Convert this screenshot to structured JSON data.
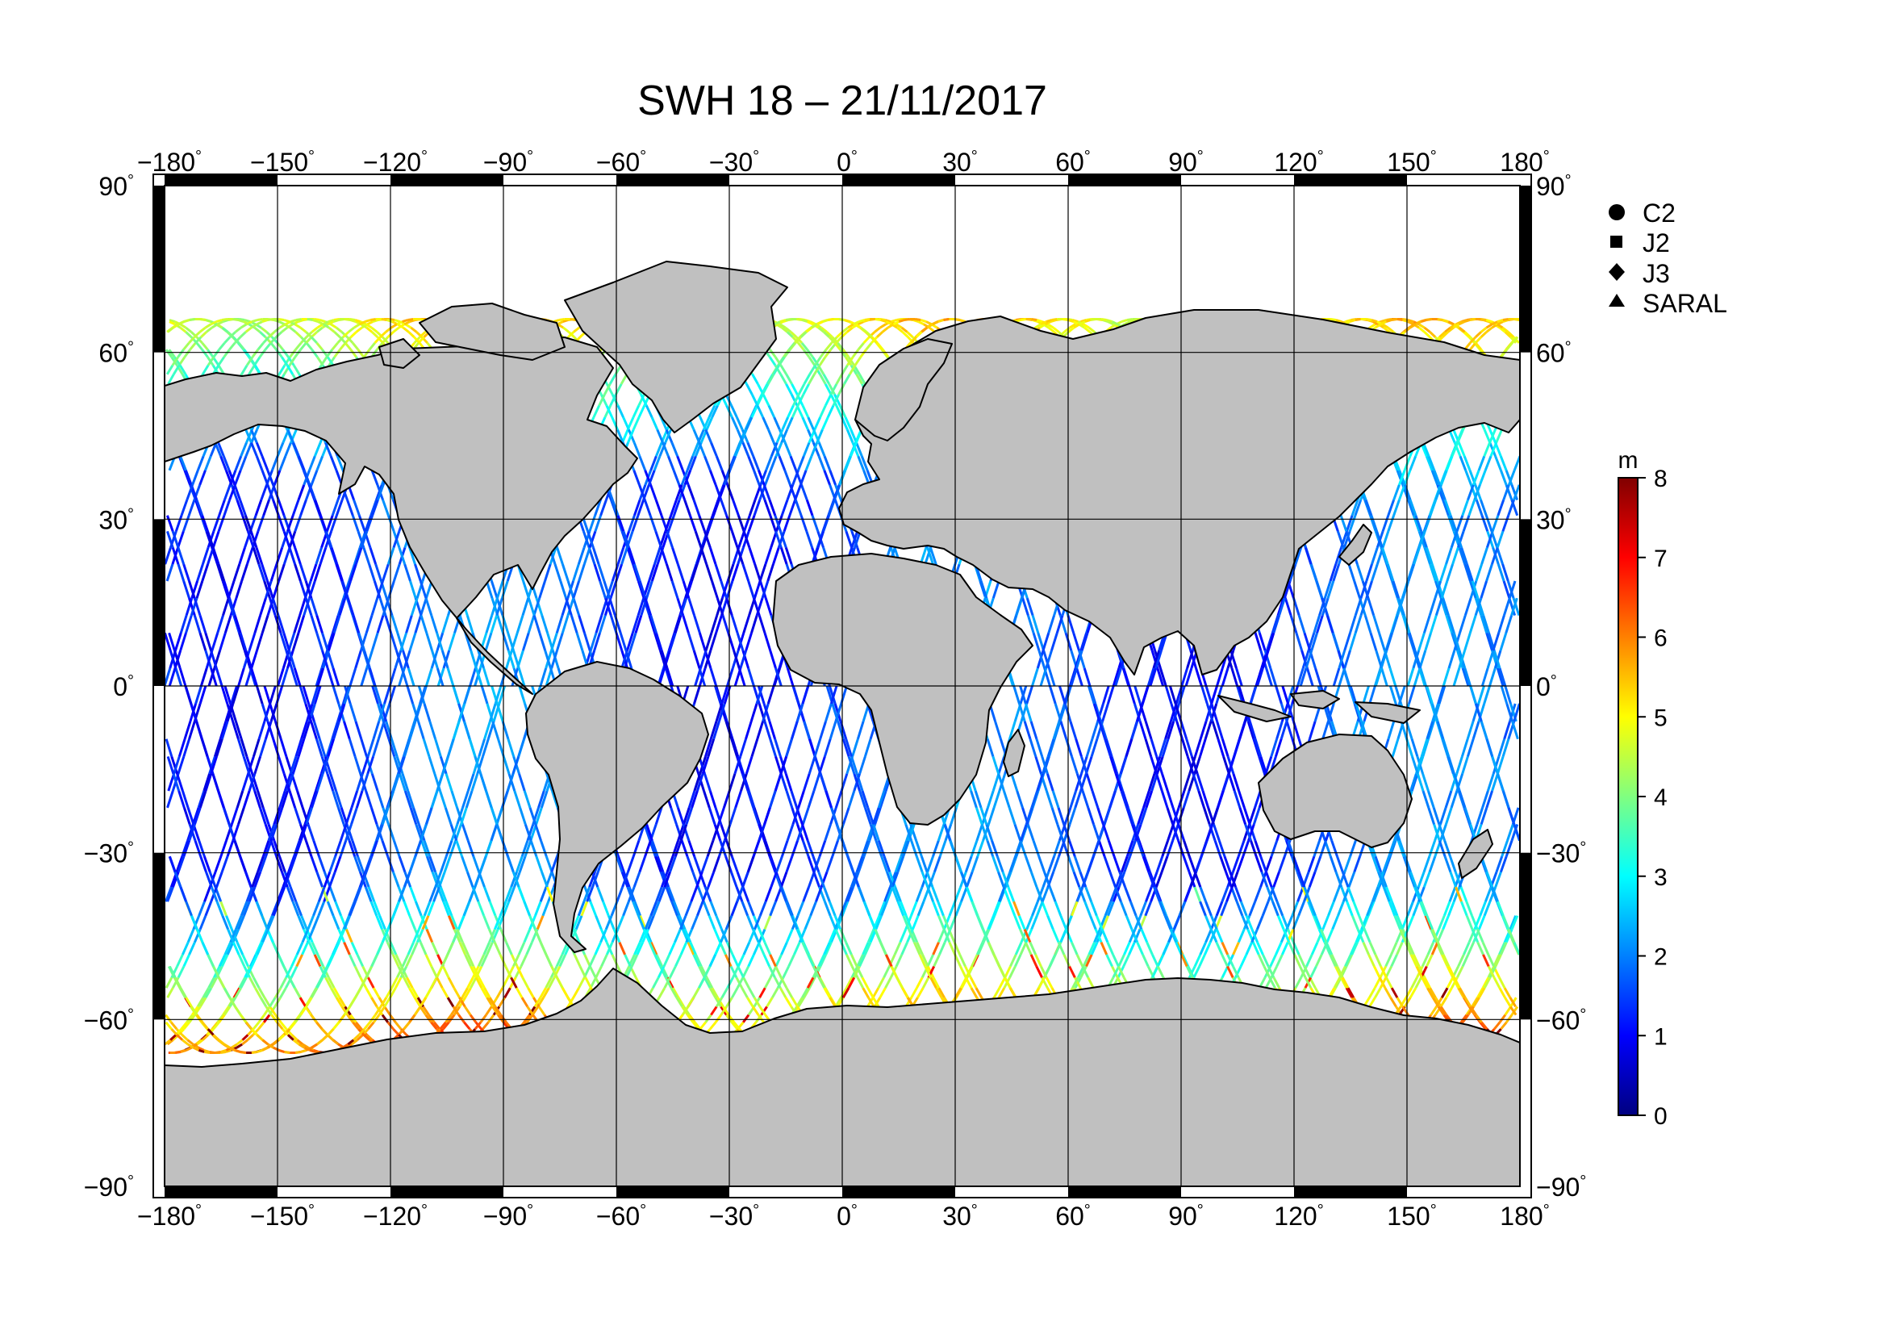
{
  "title": "SWH 18 – 21/11/2017",
  "map": {
    "lon_range": [
      -180,
      180
    ],
    "lat_range": [
      -90,
      90
    ],
    "lon_ticks": [
      {
        "value": -180,
        "label": "−180"
      },
      {
        "value": -150,
        "label": "−150"
      },
      {
        "value": -120,
        "label": "−120"
      },
      {
        "value": -90,
        "label": "−90"
      },
      {
        "value": -60,
        "label": "−60"
      },
      {
        "value": -30,
        "label": "−30"
      },
      {
        "value": 0,
        "label": "0"
      },
      {
        "value": 30,
        "label": "30"
      },
      {
        "value": 60,
        "label": "60"
      },
      {
        "value": 90,
        "label": "90"
      },
      {
        "value": 120,
        "label": "120"
      },
      {
        "value": 150,
        "label": "150"
      },
      {
        "value": 180,
        "label": "180"
      }
    ],
    "lat_ticks": [
      {
        "value": 90,
        "label": "90"
      },
      {
        "value": 60,
        "label": "60"
      },
      {
        "value": 30,
        "label": "30"
      },
      {
        "value": 0,
        "label": "0"
      },
      {
        "value": -30,
        "label": "−30"
      },
      {
        "value": -60,
        "label": "−60"
      },
      {
        "value": -90,
        "label": "−90"
      }
    ],
    "degree_symbol": "°",
    "grid": true,
    "land_color": "#c0c0c0",
    "coast_color": "#000000",
    "track_lat_limits": [
      -66,
      66
    ]
  },
  "legend": {
    "placement": "top-right",
    "items": [
      {
        "symbol": "circle",
        "label": "C2"
      },
      {
        "symbol": "square",
        "label": "J2"
      },
      {
        "symbol": "diamond",
        "label": "J3"
      },
      {
        "symbol": "triangle",
        "label": "SARAL"
      }
    ]
  },
  "colorbar": {
    "unit": "m",
    "range": [
      0,
      8
    ],
    "ticks": [
      "0",
      "1",
      "2",
      "3",
      "4",
      "5",
      "6",
      "7",
      "8"
    ],
    "colors": [
      "#000080",
      "#0000ff",
      "#0080ff",
      "#00ffff",
      "#80ff80",
      "#ffff00",
      "#ff8000",
      "#ff0000",
      "#800000"
    ]
  }
}
